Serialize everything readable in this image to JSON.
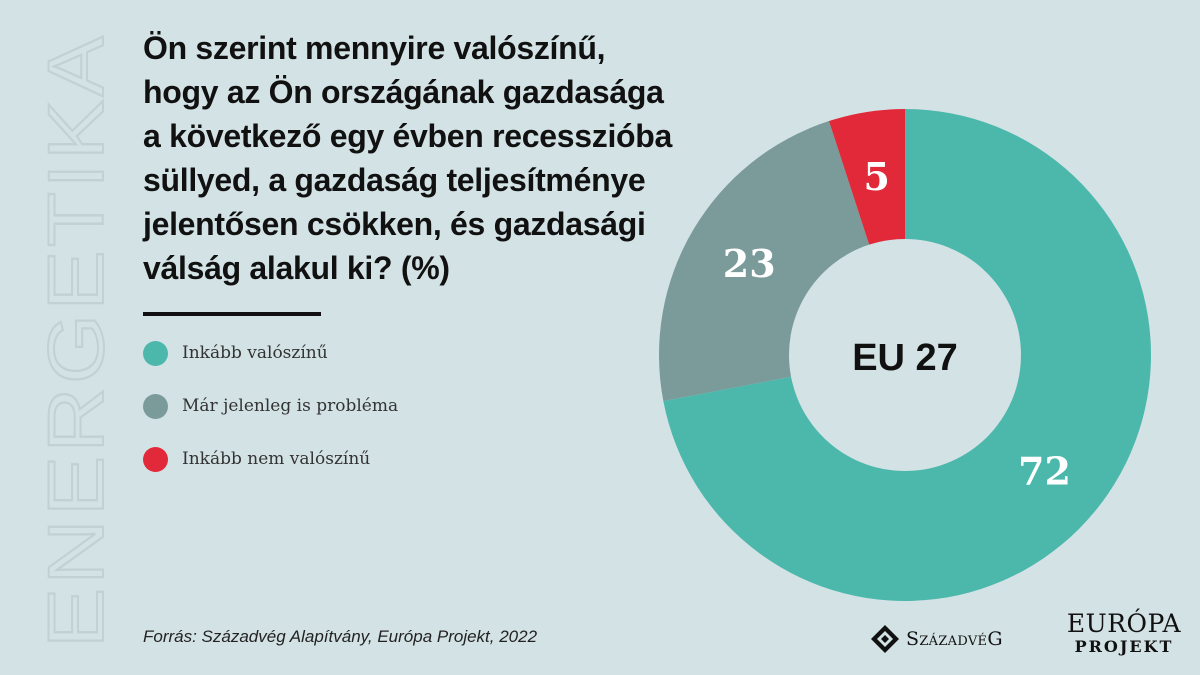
{
  "side_word": "ENERGETIKA",
  "title_lines": [
    "Ön szerint mennyire valószínű,",
    "hogy az Ön országának gazdasága",
    "a következő egy évben recesszióba",
    "süllyed, a gazdaság teljesítménye",
    "jelentősen csökken, és gazdasági",
    "válság alakul ki?  (%)"
  ],
  "colors": {
    "background": "#d3e2e5",
    "teal": "#4cb8ac",
    "grey": "#7b9a9a",
    "red": "#e2293a",
    "side_word": "#c1d1d4"
  },
  "chart_data": {
    "type": "pie",
    "donut": true,
    "center_label": "EU 27",
    "unit": "%",
    "series": [
      {
        "name": "Inkább valószínű",
        "value": 72,
        "color": "#4cb8ac"
      },
      {
        "name": "Már jelenleg is probléma",
        "value": 23,
        "color": "#7b9a9a"
      },
      {
        "name": "Inkább nem valószínű",
        "value": 5,
        "color": "#e2293a"
      }
    ],
    "slice_order": "clockwise from top",
    "legend_position": "left"
  },
  "source": "Forrás: Századvég Alapítvány, Európa Projekt, 2022",
  "logos": {
    "szazadveg": "SzázadvéG",
    "europa_top": "EURÓPA",
    "europa_bottom": "PROJEKT"
  }
}
